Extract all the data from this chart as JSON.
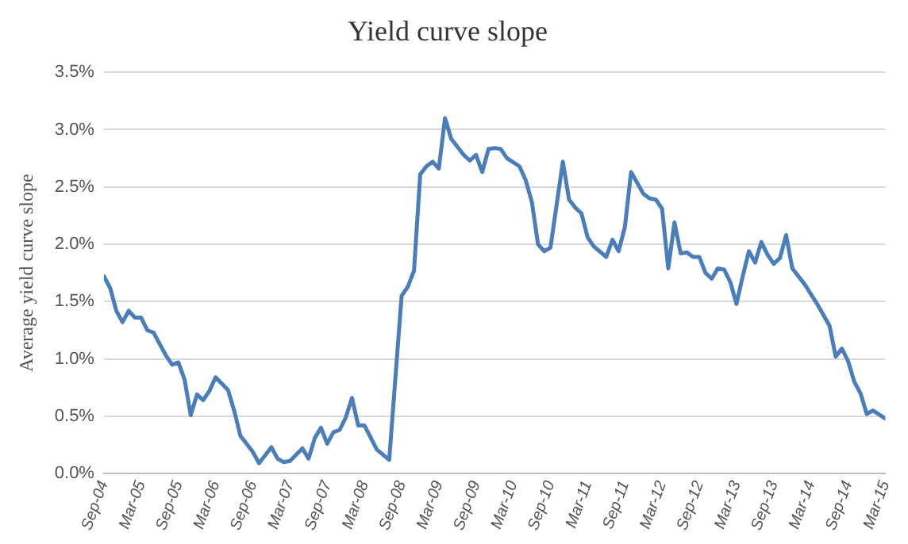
{
  "chart_data": {
    "type": "line",
    "title": "Yield curve slope",
    "ylabel": "Average yield curve slope",
    "x": [
      "2004-09",
      "2004-10",
      "2004-11",
      "2004-12",
      "2005-01",
      "2005-02",
      "2005-03",
      "2005-04",
      "2005-05",
      "2005-07",
      "2005-08",
      "2005-09",
      "2005-10",
      "2005-11",
      "2005-12",
      "2006-01",
      "2006-02",
      "2006-03",
      "2006-05",
      "2006-06",
      "2006-07",
      "2006-09",
      "2006-10",
      "2006-12",
      "2007-01",
      "2007-02",
      "2007-03",
      "2007-05",
      "2007-06",
      "2007-07",
      "2007-08",
      "2007-09",
      "2007-10",
      "2007-11",
      "2007-12",
      "2008-01",
      "2008-02",
      "2008-03",
      "2008-05",
      "2008-07",
      "2008-09",
      "2008-10",
      "2008-11",
      "2008-12",
      "2009-01",
      "2009-02",
      "2009-03",
      "2009-04",
      "2009-05",
      "2009-07",
      "2009-08",
      "2009-09",
      "2009-10",
      "2009-11",
      "2009-12",
      "2010-01",
      "2010-02",
      "2010-04",
      "2010-05",
      "2010-06",
      "2010-07",
      "2010-08",
      "2010-09",
      "2010-11",
      "2010-12",
      "2011-01",
      "2011-02",
      "2011-03",
      "2011-04",
      "2011-06",
      "2011-07",
      "2011-08",
      "2011-09",
      "2011-10",
      "2011-12",
      "2012-01",
      "2012-02",
      "2012-03",
      "2012-04",
      "2012-05",
      "2012-06",
      "2012-07",
      "2012-08",
      "2012-09",
      "2012-10",
      "2012-11",
      "2012-12",
      "2013-01",
      "2013-02",
      "2013-03",
      "2013-04",
      "2013-05",
      "2013-06",
      "2013-07",
      "2013-08",
      "2013-09",
      "2013-10",
      "2013-11",
      "2013-12",
      "2014-02",
      "2014-04",
      "2014-06",
      "2014-07",
      "2014-08",
      "2014-09",
      "2014-10",
      "2014-11",
      "2014-12",
      "2015-01",
      "2015-03"
    ],
    "series": [
      {
        "color": "#4a7ebb",
        "values": [
          1.72,
          1.62,
          1.42,
          1.32,
          1.42,
          1.36,
          1.36,
          1.25,
          1.23,
          1.03,
          0.95,
          0.97,
          0.82,
          0.51,
          0.69,
          0.64,
          0.72,
          0.84,
          0.73,
          0.55,
          0.33,
          0.19,
          0.09,
          0.23,
          0.13,
          0.1,
          0.11,
          0.22,
          0.13,
          0.31,
          0.4,
          0.26,
          0.36,
          0.38,
          0.49,
          0.66,
          0.42,
          0.42,
          0.21,
          0.12,
          1.55,
          1.63,
          1.77,
          2.61,
          2.68,
          2.72,
          2.66,
          3.1,
          2.92,
          2.78,
          2.73,
          2.78,
          2.63,
          2.83,
          2.84,
          2.83,
          2.75,
          2.68,
          2.56,
          2.37,
          2.0,
          1.94,
          1.97,
          2.72,
          2.39,
          2.32,
          2.27,
          2.06,
          1.98,
          1.89,
          2.04,
          1.94,
          2.15,
          2.63,
          2.44,
          2.4,
          2.39,
          2.31,
          1.79,
          2.19,
          1.92,
          1.93,
          1.89,
          1.89,
          1.75,
          1.7,
          1.79,
          1.78,
          1.67,
          1.48,
          1.72,
          1.94,
          1.84,
          2.02,
          1.91,
          1.83,
          1.88,
          2.08,
          1.79,
          1.65,
          1.48,
          1.29,
          1.02,
          1.09,
          0.98,
          0.8,
          0.7,
          0.52,
          0.55,
          0.48
        ]
      }
    ],
    "xlim": [
      "2004-09",
      "2015-03"
    ],
    "xticks": [
      {
        "value": "2004-09",
        "label": "Sep-04"
      },
      {
        "value": "2005-03",
        "label": "Mar-05"
      },
      {
        "value": "2005-09",
        "label": "Sep-05"
      },
      {
        "value": "2006-03",
        "label": "Mar-06"
      },
      {
        "value": "2006-09",
        "label": "Sep-06"
      },
      {
        "value": "2007-03",
        "label": "Mar-07"
      },
      {
        "value": "2007-09",
        "label": "Sep-07"
      },
      {
        "value": "2008-03",
        "label": "Mar-08"
      },
      {
        "value": "2008-09",
        "label": "Sep-08"
      },
      {
        "value": "2009-03",
        "label": "Mar-09"
      },
      {
        "value": "2009-09",
        "label": "Sep-09"
      },
      {
        "value": "2010-03",
        "label": "Mar-10"
      },
      {
        "value": "2010-09",
        "label": "Sep-10"
      },
      {
        "value": "2011-03",
        "label": "Mar-11"
      },
      {
        "value": "2011-09",
        "label": "Sep-11"
      },
      {
        "value": "2012-03",
        "label": "Mar-12"
      },
      {
        "value": "2012-09",
        "label": "Sep-12"
      },
      {
        "value": "2013-03",
        "label": "Mar-13"
      },
      {
        "value": "2013-09",
        "label": "Sep-13"
      },
      {
        "value": "2014-03",
        "label": "Mar-14"
      },
      {
        "value": "2014-09",
        "label": "Sep-14"
      },
      {
        "value": "2015-03",
        "label": "Mar-15"
      }
    ],
    "ylim": [
      0,
      3.5
    ],
    "yticks": [
      {
        "value": 0,
        "label": "0.0%"
      },
      {
        "value": 0.5,
        "label": "0.5%"
      },
      {
        "value": 1,
        "label": "1.0%"
      },
      {
        "value": 1.5,
        "label": "1.5%"
      },
      {
        "value": 2,
        "label": "2.0%"
      },
      {
        "value": 2.5,
        "label": "2.5%"
      },
      {
        "value": 3,
        "label": "3.0%"
      },
      {
        "value": 3.5,
        "label": "3.5%"
      }
    ],
    "grid": "y",
    "legend": false,
    "marker": "none",
    "line_style": "solid"
  }
}
